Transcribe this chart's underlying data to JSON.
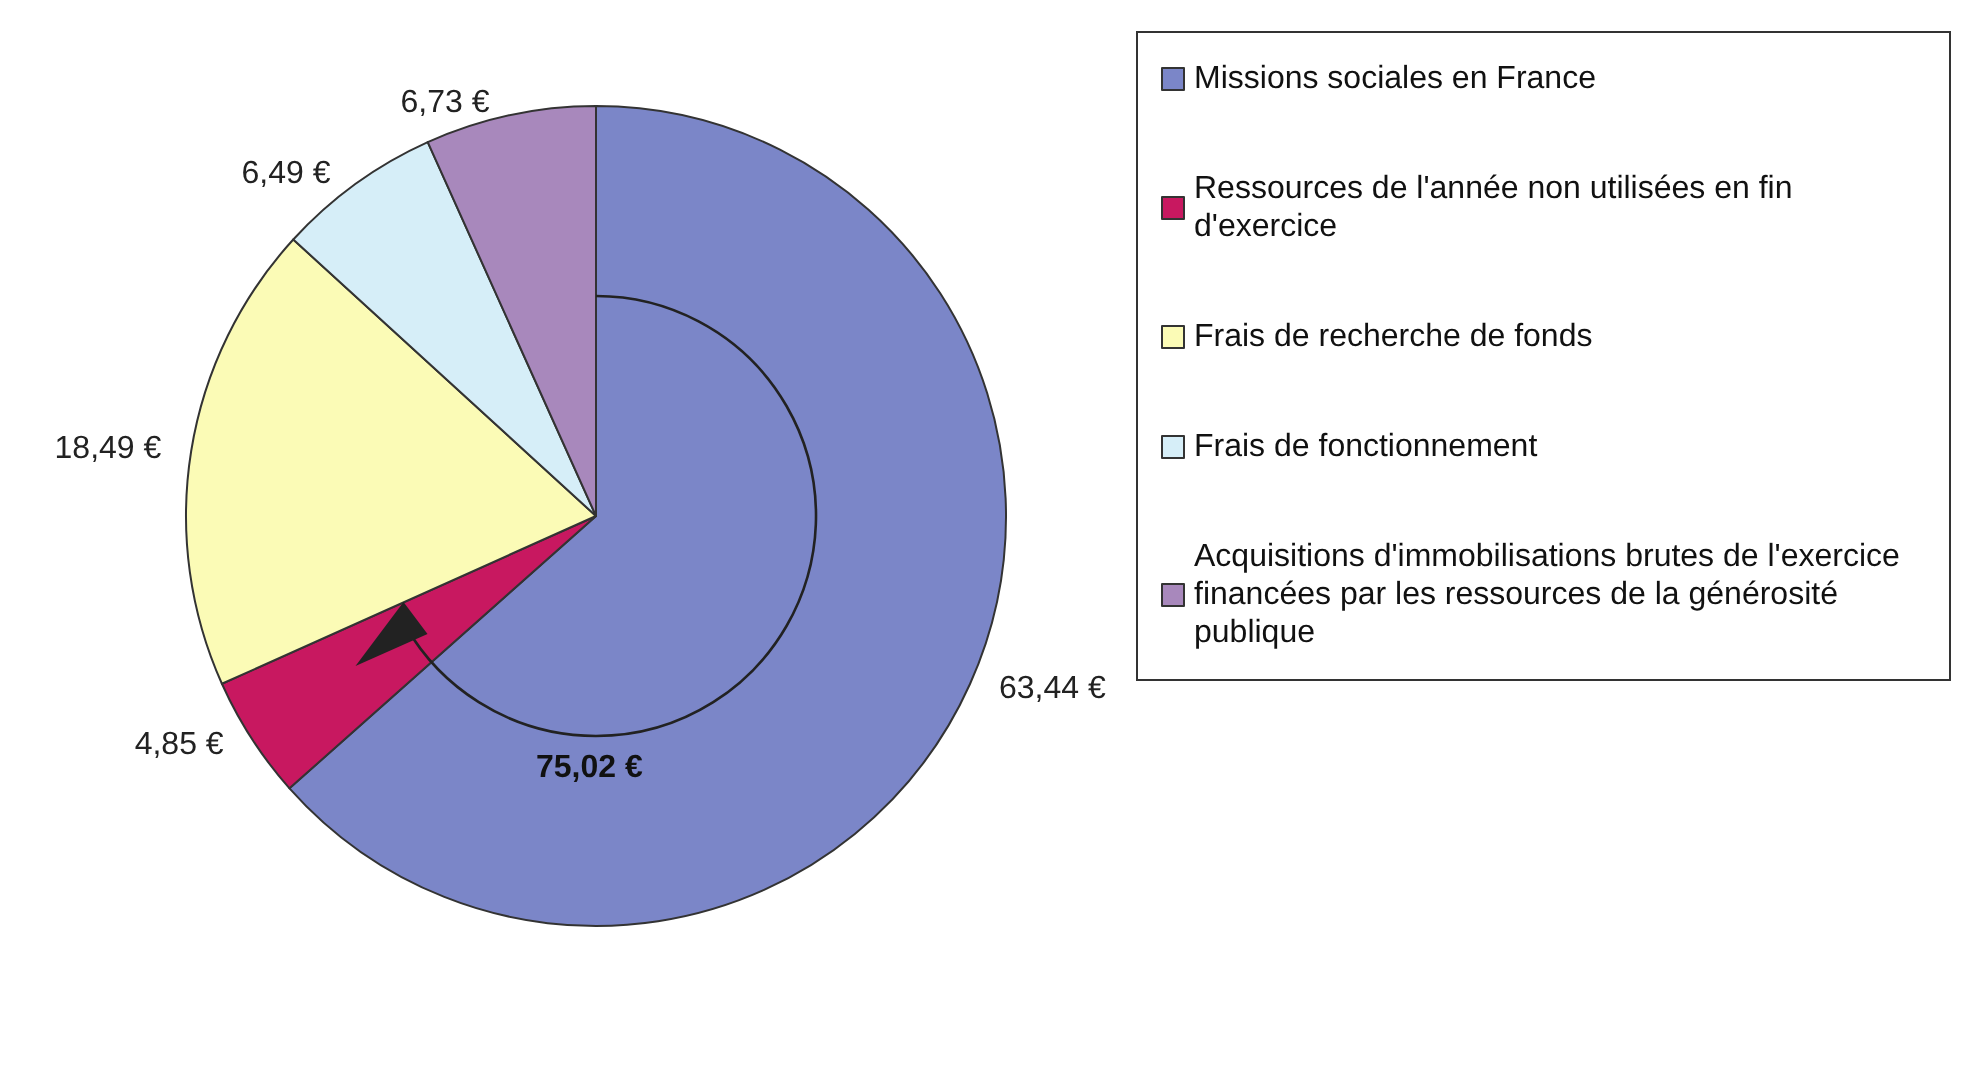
{
  "chart_data": {
    "type": "pie",
    "categories": [
      "Missions sociales en France",
      "Ressources de l'année non utilisées en fin d'exercice",
      "Frais de recherche de fonds",
      "Frais de fonctionnement",
      "Acquisitions d'immobilisations brutes de l'exercice financées par les ressources de la générosité publique"
    ],
    "values": [
      63.44,
      4.85,
      18.49,
      6.49,
      6.73
    ],
    "value_labels": [
      "63,44 €",
      "4,85 €",
      "18,49 €",
      "6,49 €",
      "6,73 €"
    ],
    "colors": [
      "#7b86c8",
      "#c81860",
      "#fbfbb6",
      "#d6eef8",
      "#a888bc"
    ],
    "annotations": [
      "75,02 €"
    ],
    "legend": "right"
  }
}
